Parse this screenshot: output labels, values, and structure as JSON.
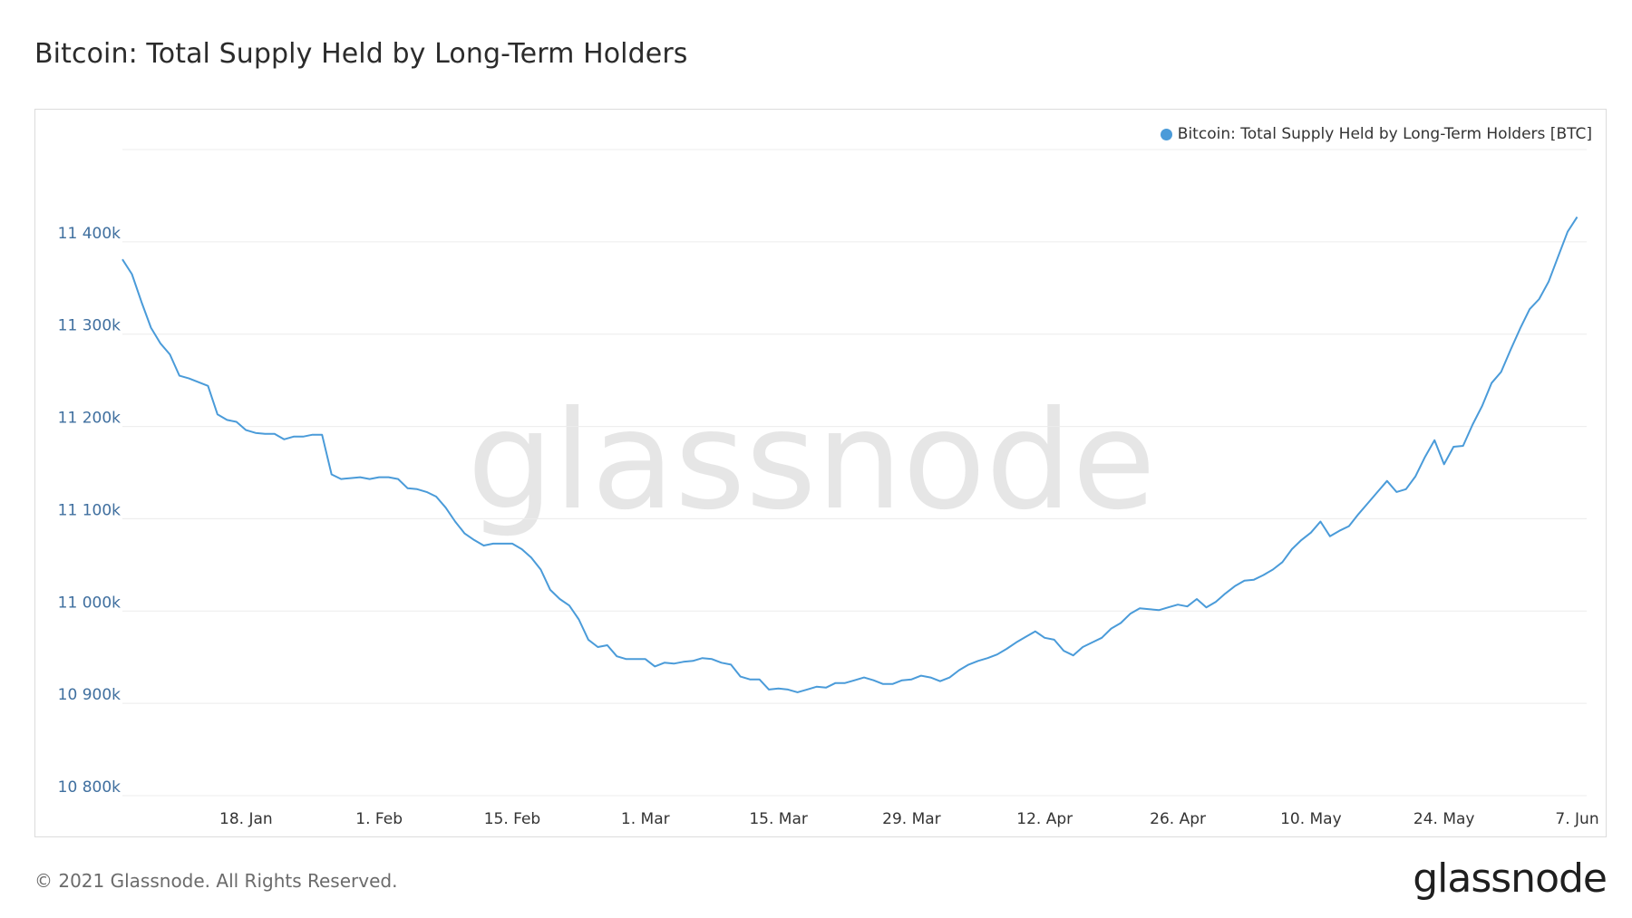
{
  "title": "Bitcoin: Total Supply Held by Long-Term Holders",
  "footer": {
    "copyright": "© 2021 Glassnode. All Rights Reserved.",
    "logo": "glassnode"
  },
  "watermark": "glassnode",
  "colors": {
    "line": "#4a9bd9",
    "grid": "#ececec",
    "y_tick_text": "#3f6f9f"
  },
  "chart_data": {
    "type": "line",
    "title": "",
    "xlabel": "",
    "ylabel": "",
    "legend": {
      "position": "top-right",
      "label": "Bitcoin: Total Supply Held by Long-Term Holders [BTC]"
    },
    "grid": true,
    "ylim": [
      10800000,
      11500000
    ],
    "y_ticks": [
      {
        "value": 10800000,
        "label": "10 800k"
      },
      {
        "value": 10900000,
        "label": "10 900k"
      },
      {
        "value": 11000000,
        "label": "11 000k"
      },
      {
        "value": 11100000,
        "label": "11 100k"
      },
      {
        "value": 11200000,
        "label": "11 200k"
      },
      {
        "value": 11300000,
        "label": "11 300k"
      },
      {
        "value": 11400000,
        "label": "11 400k"
      }
    ],
    "x_range": [
      "2021-01-05",
      "2021-06-08"
    ],
    "x_ticks": [
      {
        "date": "2021-01-18",
        "label": "18. Jan"
      },
      {
        "date": "2021-02-01",
        "label": "1. Feb"
      },
      {
        "date": "2021-02-15",
        "label": "15. Feb"
      },
      {
        "date": "2021-03-01",
        "label": "1. Mar"
      },
      {
        "date": "2021-03-15",
        "label": "15. Mar"
      },
      {
        "date": "2021-03-29",
        "label": "29. Mar"
      },
      {
        "date": "2021-04-12",
        "label": "12. Apr"
      },
      {
        "date": "2021-04-26",
        "label": "26. Apr"
      },
      {
        "date": "2021-05-10",
        "label": "10. May"
      },
      {
        "date": "2021-05-24",
        "label": "24. May"
      },
      {
        "date": "2021-06-07",
        "label": "7. Jun"
      }
    ],
    "series": [
      {
        "name": "Bitcoin: Total Supply Held by Long-Term Holders [BTC]",
        "points": [
          [
            "2021-01-05",
            11381000
          ],
          [
            "2021-01-06",
            11365000
          ],
          [
            "2021-01-07",
            11335000
          ],
          [
            "2021-01-08",
            11307000
          ],
          [
            "2021-01-09",
            11290000
          ],
          [
            "2021-01-10",
            11278000
          ],
          [
            "2021-01-11",
            11255000
          ],
          [
            "2021-01-12",
            11252000
          ],
          [
            "2021-01-13",
            11248000
          ],
          [
            "2021-01-14",
            11244000
          ],
          [
            "2021-01-15",
            11213000
          ],
          [
            "2021-01-16",
            11207000
          ],
          [
            "2021-01-17",
            11205000
          ],
          [
            "2021-01-18",
            11196000
          ],
          [
            "2021-01-19",
            11193000
          ],
          [
            "2021-01-20",
            11192000
          ],
          [
            "2021-01-21",
            11192000
          ],
          [
            "2021-01-22",
            11186000
          ],
          [
            "2021-01-23",
            11189000
          ],
          [
            "2021-01-24",
            11189000
          ],
          [
            "2021-01-25",
            11191000
          ],
          [
            "2021-01-26",
            11191000
          ],
          [
            "2021-01-27",
            11148000
          ],
          [
            "2021-01-28",
            11143000
          ],
          [
            "2021-01-29",
            11144000
          ],
          [
            "2021-01-30",
            11145000
          ],
          [
            "2021-01-31",
            11143000
          ],
          [
            "2021-02-01",
            11145000
          ],
          [
            "2021-02-02",
            11145000
          ],
          [
            "2021-02-03",
            11143000
          ],
          [
            "2021-02-04",
            11133000
          ],
          [
            "2021-02-05",
            11132000
          ],
          [
            "2021-02-06",
            11129000
          ],
          [
            "2021-02-07",
            11124000
          ],
          [
            "2021-02-08",
            11112000
          ],
          [
            "2021-02-09",
            11097000
          ],
          [
            "2021-02-10",
            11084000
          ],
          [
            "2021-02-11",
            11077000
          ],
          [
            "2021-02-12",
            11071000
          ],
          [
            "2021-02-13",
            11073000
          ],
          [
            "2021-02-14",
            11073000
          ],
          [
            "2021-02-15",
            11073000
          ],
          [
            "2021-02-16",
            11067000
          ],
          [
            "2021-02-17",
            11058000
          ],
          [
            "2021-02-18",
            11045000
          ],
          [
            "2021-02-19",
            11023000
          ],
          [
            "2021-02-20",
            11013000
          ],
          [
            "2021-02-21",
            11006000
          ],
          [
            "2021-02-22",
            10991000
          ],
          [
            "2021-02-23",
            10969000
          ],
          [
            "2021-02-24",
            10961000
          ],
          [
            "2021-02-25",
            10963000
          ],
          [
            "2021-02-26",
            10951000
          ],
          [
            "2021-02-27",
            10948000
          ],
          [
            "2021-02-28",
            10948000
          ],
          [
            "2021-03-01",
            10948000
          ],
          [
            "2021-03-02",
            10940000
          ],
          [
            "2021-03-03",
            10944000
          ],
          [
            "2021-03-04",
            10943000
          ],
          [
            "2021-03-05",
            10945000
          ],
          [
            "2021-03-06",
            10946000
          ],
          [
            "2021-03-07",
            10949000
          ],
          [
            "2021-03-08",
            10948000
          ],
          [
            "2021-03-09",
            10944000
          ],
          [
            "2021-03-10",
            10942000
          ],
          [
            "2021-03-11",
            10929000
          ],
          [
            "2021-03-12",
            10926000
          ],
          [
            "2021-03-13",
            10926000
          ],
          [
            "2021-03-14",
            10915000
          ],
          [
            "2021-03-15",
            10916000
          ],
          [
            "2021-03-16",
            10915000
          ],
          [
            "2021-03-17",
            10912000
          ],
          [
            "2021-03-18",
            10915000
          ],
          [
            "2021-03-19",
            10918000
          ],
          [
            "2021-03-20",
            10917000
          ],
          [
            "2021-03-21",
            10922000
          ],
          [
            "2021-03-22",
            10922000
          ],
          [
            "2021-03-23",
            10925000
          ],
          [
            "2021-03-24",
            10928000
          ],
          [
            "2021-03-25",
            10925000
          ],
          [
            "2021-03-26",
            10921000
          ],
          [
            "2021-03-27",
            10921000
          ],
          [
            "2021-03-28",
            10925000
          ],
          [
            "2021-03-29",
            10926000
          ],
          [
            "2021-03-30",
            10930000
          ],
          [
            "2021-03-31",
            10928000
          ],
          [
            "2021-04-01",
            10924000
          ],
          [
            "2021-04-02",
            10928000
          ],
          [
            "2021-04-03",
            10936000
          ],
          [
            "2021-04-04",
            10942000
          ],
          [
            "2021-04-05",
            10946000
          ],
          [
            "2021-04-06",
            10949000
          ],
          [
            "2021-04-07",
            10953000
          ],
          [
            "2021-04-08",
            10959000
          ],
          [
            "2021-04-09",
            10966000
          ],
          [
            "2021-04-10",
            10972000
          ],
          [
            "2021-04-11",
            10978000
          ],
          [
            "2021-04-12",
            10971000
          ],
          [
            "2021-04-13",
            10969000
          ],
          [
            "2021-04-14",
            10957000
          ],
          [
            "2021-04-15",
            10952000
          ],
          [
            "2021-04-16",
            10961000
          ],
          [
            "2021-04-17",
            10966000
          ],
          [
            "2021-04-18",
            10971000
          ],
          [
            "2021-04-19",
            10981000
          ],
          [
            "2021-04-20",
            10987000
          ],
          [
            "2021-04-21",
            10997000
          ],
          [
            "2021-04-22",
            11003000
          ],
          [
            "2021-04-23",
            11002000
          ],
          [
            "2021-04-24",
            11001000
          ],
          [
            "2021-04-25",
            11004000
          ],
          [
            "2021-04-26",
            11007000
          ],
          [
            "2021-04-27",
            11005000
          ],
          [
            "2021-04-28",
            11013000
          ],
          [
            "2021-04-29",
            11004000
          ],
          [
            "2021-04-30",
            11010000
          ],
          [
            "2021-05-01",
            11019000
          ],
          [
            "2021-05-02",
            11027000
          ],
          [
            "2021-05-03",
            11033000
          ],
          [
            "2021-05-04",
            11034000
          ],
          [
            "2021-05-05",
            11039000
          ],
          [
            "2021-05-06",
            11045000
          ],
          [
            "2021-05-07",
            11053000
          ],
          [
            "2021-05-08",
            11067000
          ],
          [
            "2021-05-09",
            11077000
          ],
          [
            "2021-05-10",
            11085000
          ],
          [
            "2021-05-11",
            11097000
          ],
          [
            "2021-05-12",
            11081000
          ],
          [
            "2021-05-13",
            11087000
          ],
          [
            "2021-05-14",
            11092000
          ],
          [
            "2021-05-15",
            11105000
          ],
          [
            "2021-05-16",
            11117000
          ],
          [
            "2021-05-17",
            11129000
          ],
          [
            "2021-05-18",
            11141000
          ],
          [
            "2021-05-19",
            11129000
          ],
          [
            "2021-05-20",
            11132000
          ],
          [
            "2021-05-21",
            11146000
          ],
          [
            "2021-05-22",
            11167000
          ],
          [
            "2021-05-23",
            11185000
          ],
          [
            "2021-05-24",
            11159000
          ],
          [
            "2021-05-25",
            11178000
          ],
          [
            "2021-05-26",
            11179000
          ],
          [
            "2021-05-27",
            11202000
          ],
          [
            "2021-05-28",
            11222000
          ],
          [
            "2021-05-29",
            11247000
          ],
          [
            "2021-05-30",
            11259000
          ],
          [
            "2021-05-31",
            11283000
          ],
          [
            "2021-06-01",
            11306000
          ],
          [
            "2021-06-02",
            11327000
          ],
          [
            "2021-06-03",
            11338000
          ],
          [
            "2021-06-04",
            11357000
          ],
          [
            "2021-06-05",
            11384000
          ],
          [
            "2021-06-06",
            11411000
          ],
          [
            "2021-06-07",
            11427000
          ]
        ]
      }
    ]
  }
}
